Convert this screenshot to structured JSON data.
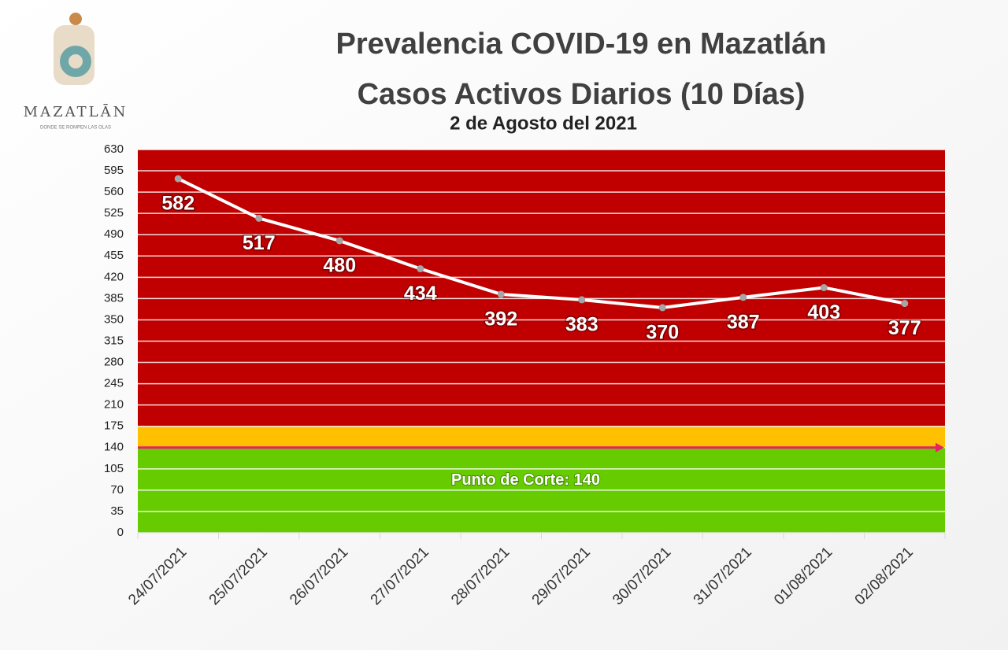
{
  "logo": {
    "name": "MAZATLĀN",
    "tagline": "DONDE SE ROMPEN LAS OLAS"
  },
  "chart_data": {
    "type": "line",
    "title": "Prevalencia COVID-19 en Mazatlán",
    "title2": "Casos Activos Diarios (10 Días)",
    "subtitle": "2 de Agosto del 2021",
    "categories": [
      "24/07/2021",
      "25/07/2021",
      "26/07/2021",
      "27/07/2021",
      "28/07/2021",
      "29/07/2021",
      "30/07/2021",
      "31/07/2021",
      "01/08/2021",
      "02/08/2021"
    ],
    "values": [
      582,
      517,
      480,
      434,
      392,
      383,
      370,
      387,
      403,
      377
    ],
    "color": "#ffffff",
    "marker_color": "#a6a6a6",
    "ylim": [
      0,
      630
    ],
    "yticks": [
      0,
      35,
      70,
      105,
      140,
      175,
      210,
      245,
      280,
      315,
      350,
      385,
      420,
      455,
      490,
      525,
      560,
      595,
      630
    ],
    "grid": true,
    "bands": [
      {
        "from": 0,
        "to": 140,
        "color": "#66cc00"
      },
      {
        "from": 140,
        "to": 175,
        "color": "#ffc000"
      },
      {
        "from": 175,
        "to": 630,
        "color": "#c00000"
      }
    ],
    "threshold": {
      "value": 140,
      "label": "Punto de Corte: 140",
      "color": "#e8206a"
    }
  }
}
